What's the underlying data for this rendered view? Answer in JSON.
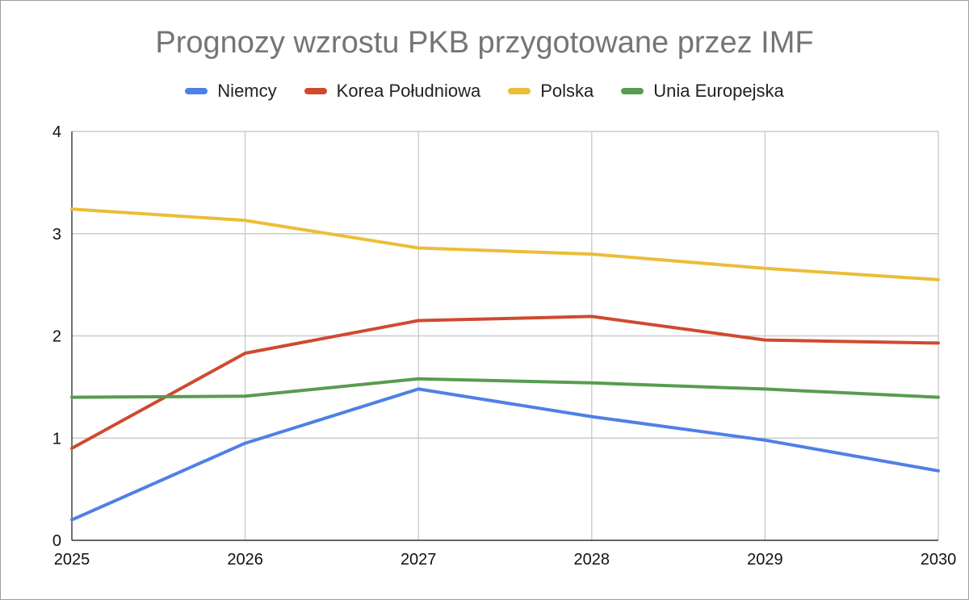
{
  "chart_data": {
    "type": "line",
    "title": "Prognozy wzrostu PKB przygotowane przez IMF",
    "xlabel": "",
    "ylabel": "",
    "x": [
      "2025",
      "2026",
      "2027",
      "2028",
      "2029",
      "2030"
    ],
    "xlim": [
      2025,
      2030
    ],
    "ylim": [
      0,
      4
    ],
    "yticks": [
      "0",
      "1",
      "2",
      "3",
      "4"
    ],
    "grid": true,
    "legend_position": "top",
    "series": [
      {
        "name": "Niemcy",
        "color": "#4f80e6",
        "values": [
          0.2,
          0.95,
          1.48,
          1.21,
          0.98,
          0.68
        ]
      },
      {
        "name": "Korea Południowa",
        "color": "#cf4a30",
        "values": [
          0.9,
          1.83,
          2.15,
          2.19,
          1.96,
          1.93
        ]
      },
      {
        "name": "Polska",
        "color": "#ecbd38",
        "values": [
          3.24,
          3.13,
          2.86,
          2.8,
          2.66,
          2.55
        ]
      },
      {
        "name": "Unia Europejska",
        "color": "#589c4f",
        "values": [
          1.4,
          1.41,
          1.58,
          1.54,
          1.48,
          1.4
        ]
      }
    ]
  }
}
